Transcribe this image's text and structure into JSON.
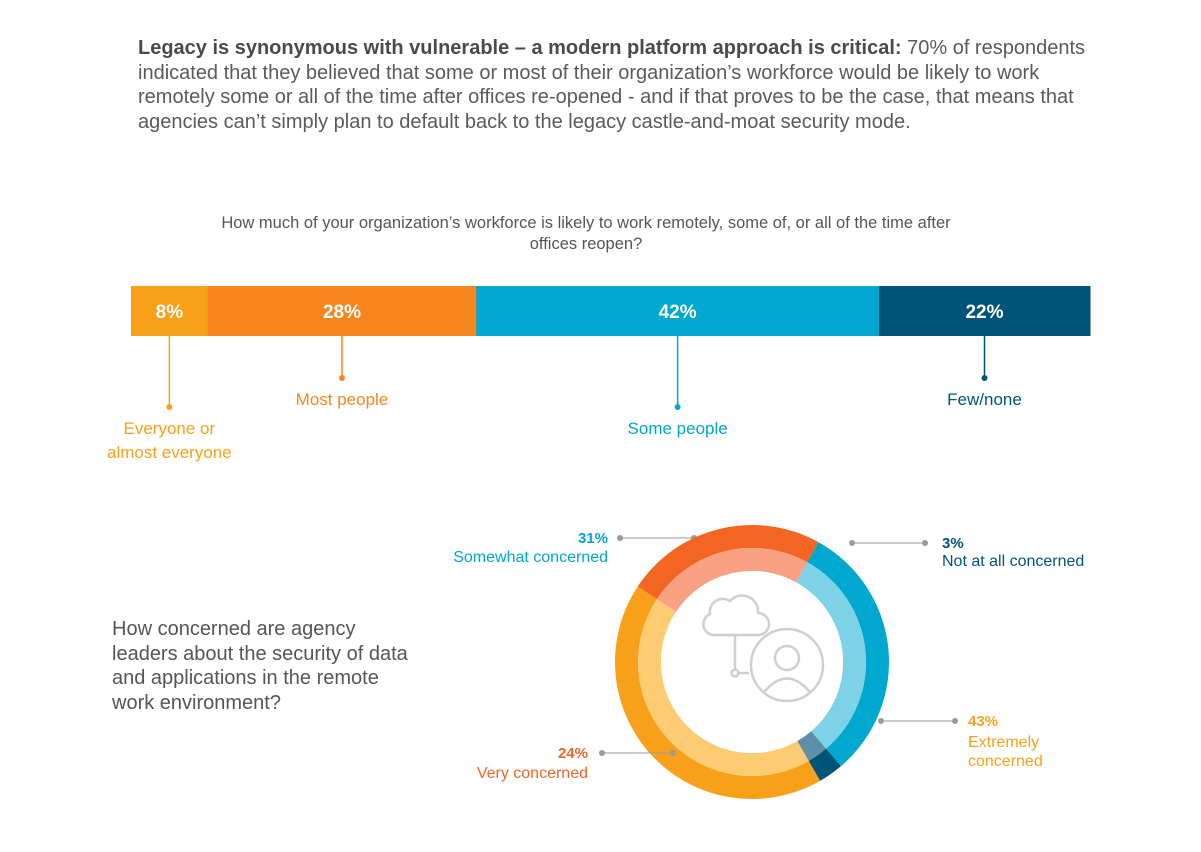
{
  "intro": {
    "bold": "Legacy is synonymous with vulnerable – a modern platform approach is critical:",
    "text": " 70% of respondents indicated that they believed that some or most of their organization’s workforce would be likely to work remotely some or all of the time after offices re-opened - and if that proves to be the case, that means that agencies can’t simply plan to default back to the legacy castle-and-moat security mode."
  },
  "chart_data": [
    {
      "type": "bar",
      "orientation": "horizontal-stacked",
      "title": "How much of your organization’s workforce is likely to work remotely, some of, or all of the time after offices reopen?",
      "categories": [
        "Everyone or almost everyone",
        "Most people",
        "Some people",
        "Few/none"
      ],
      "values": [
        8,
        28,
        42,
        22
      ],
      "value_labels": [
        "8%",
        "28%",
        "42%",
        "22%"
      ],
      "label_lines": [
        [
          "Everyone or",
          "almost everyone"
        ],
        [
          "Most people"
        ],
        [
          "Some people"
        ],
        [
          "Few/none"
        ]
      ],
      "colors": [
        "#f9a01b",
        "#f7861f",
        "#00a7ce",
        "#005478"
      ],
      "label_colors": [
        "#f9a01b",
        "#f7861f",
        "#00a7ce",
        "#005478"
      ]
    },
    {
      "type": "pie",
      "subtype": "donut",
      "title": "How concerned are agency leaders about the security of data and applications in the remote work environment?",
      "categories": [
        "Somewhat concerned",
        "Not at all concerned",
        "Extremely concerned",
        "Very concerned"
      ],
      "values": [
        31,
        3,
        43,
        24
      ],
      "value_labels": [
        "31%",
        "3%",
        "43%",
        "24%"
      ],
      "label_lines": [
        [
          "Somewhat concerned"
        ],
        [
          "Not at all concerned"
        ],
        [
          "Extremely",
          "concerned"
        ],
        [
          "Very concerned"
        ]
      ],
      "outer_colors": [
        "#00a7ce",
        "#005478",
        "#f9a01b",
        "#f26522"
      ],
      "inner_colors": [
        "#7dd2e7",
        "#5d8fa6",
        "#fccb72",
        "#f9a183"
      ],
      "label_colors": [
        "#00a7ce",
        "#005478",
        "#f9a01b",
        "#f26522"
      ],
      "start_angle_deg": 29
    }
  ],
  "icons": {
    "center": "cloud-user-icon"
  }
}
